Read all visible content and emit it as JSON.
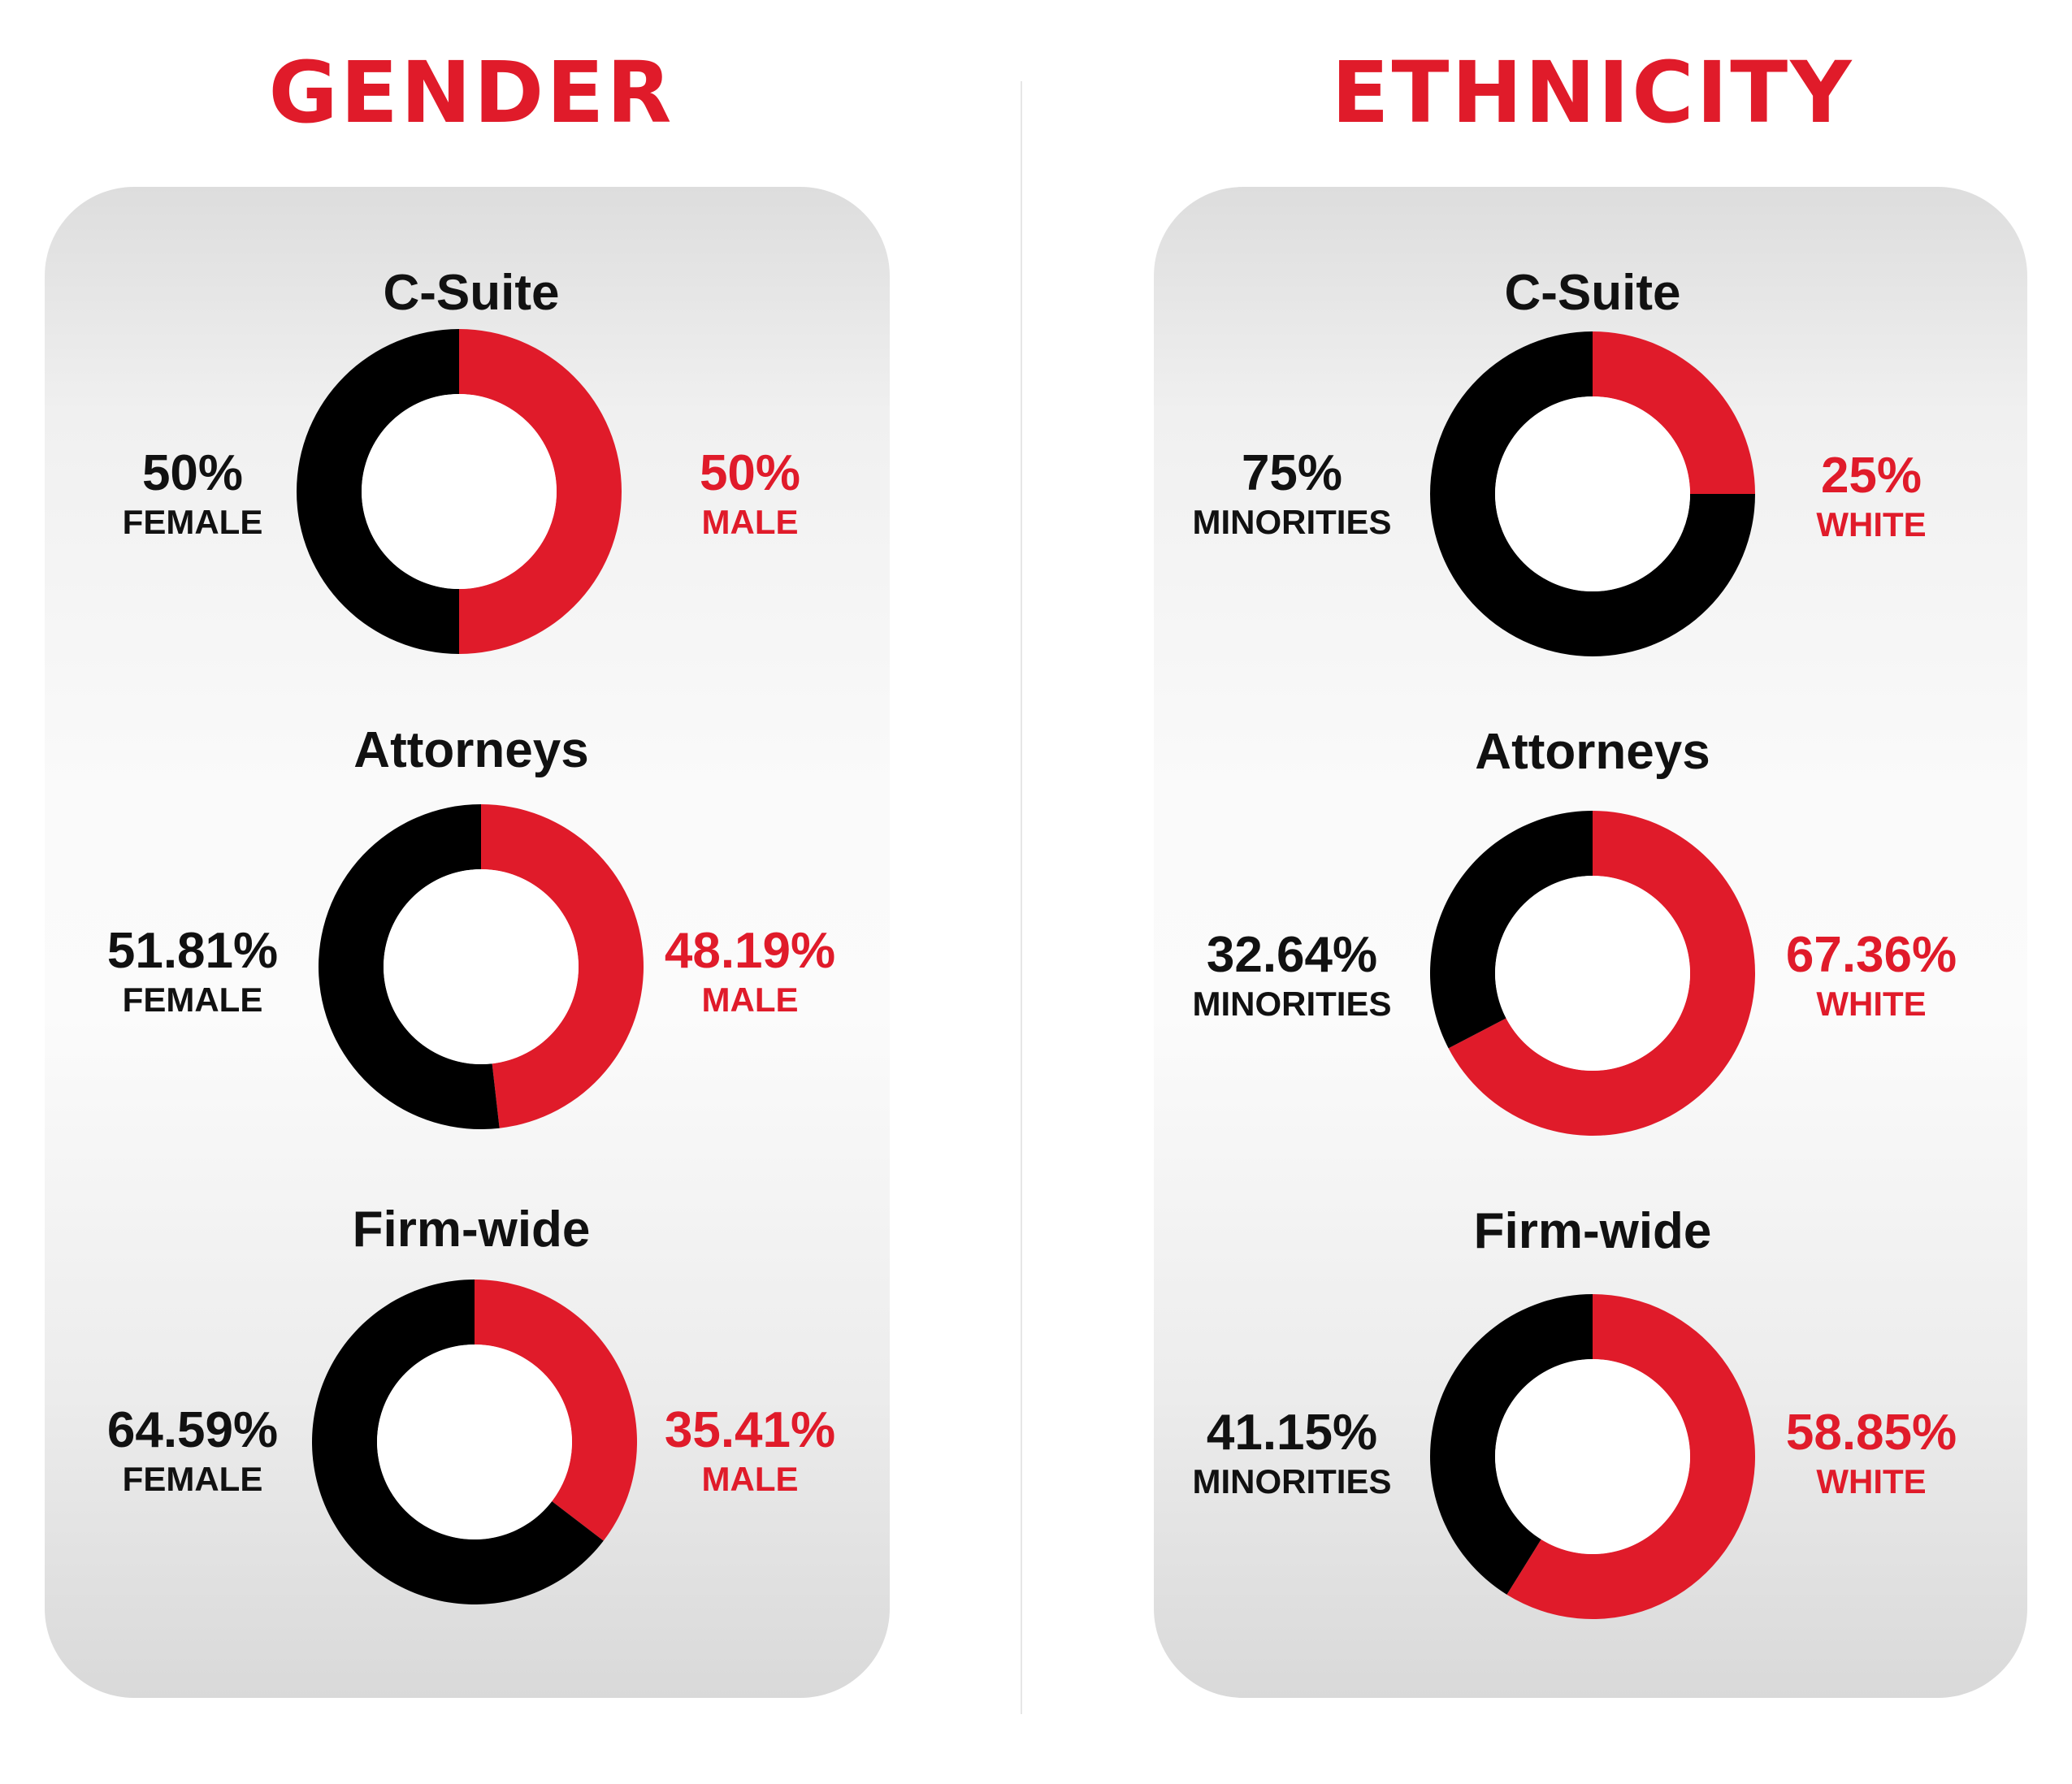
{
  "colors": {
    "red": "#e01b2a",
    "black": "#000000"
  },
  "sections": [
    {
      "title": "GENDER",
      "charts": [
        {
          "title": "C-Suite",
          "left": {
            "pct": "50%",
            "label": "FEMALE"
          },
          "right": {
            "pct": "50%",
            "label": "MALE"
          }
        },
        {
          "title": "Attorneys",
          "left": {
            "pct": "51.81%",
            "label": "FEMALE"
          },
          "right": {
            "pct": "48.19%",
            "label": "MALE"
          }
        },
        {
          "title": "Firm-wide",
          "left": {
            "pct": "64.59%",
            "label": "FEMALE"
          },
          "right": {
            "pct": "35.41%",
            "label": "MALE"
          }
        }
      ]
    },
    {
      "title": "ETHNICITY",
      "charts": [
        {
          "title": "C-Suite",
          "left": {
            "pct": "75%",
            "label": "MINORITIES"
          },
          "right": {
            "pct": "25%",
            "label": "WHITE"
          }
        },
        {
          "title": "Attorneys",
          "left": {
            "pct": "32.64%",
            "label": "MINORITIES"
          },
          "right": {
            "pct": "67.36%",
            "label": "WHITE"
          }
        },
        {
          "title": "Firm-wide",
          "left": {
            "pct": "41.15%",
            "label": "MINORITIES"
          },
          "right": {
            "pct": "58.85%",
            "label": "WHITE"
          }
        }
      ]
    }
  ],
  "chart_data": [
    {
      "type": "pie",
      "title": "C-Suite",
      "labels": [
        "FEMALE",
        "MALE"
      ],
      "values": [
        50,
        50
      ]
    },
    {
      "type": "pie",
      "title": "Attorneys",
      "labels": [
        "FEMALE",
        "MALE"
      ],
      "values": [
        51.81,
        48.19
      ]
    },
    {
      "type": "pie",
      "title": "Firm-wide",
      "labels": [
        "FEMALE",
        "MALE"
      ],
      "values": [
        64.59,
        35.41
      ]
    },
    {
      "type": "pie",
      "title": "C-Suite",
      "labels": [
        "MINORITIES",
        "WHITE"
      ],
      "values": [
        75,
        25
      ]
    },
    {
      "type": "pie",
      "title": "Attorneys",
      "labels": [
        "MINORITIES",
        "WHITE"
      ],
      "values": [
        32.64,
        67.36
      ]
    },
    {
      "type": "pie",
      "title": "Firm-wide",
      "labels": [
        "MINORITIES",
        "WHITE"
      ],
      "values": [
        41.15,
        58.85
      ]
    }
  ]
}
